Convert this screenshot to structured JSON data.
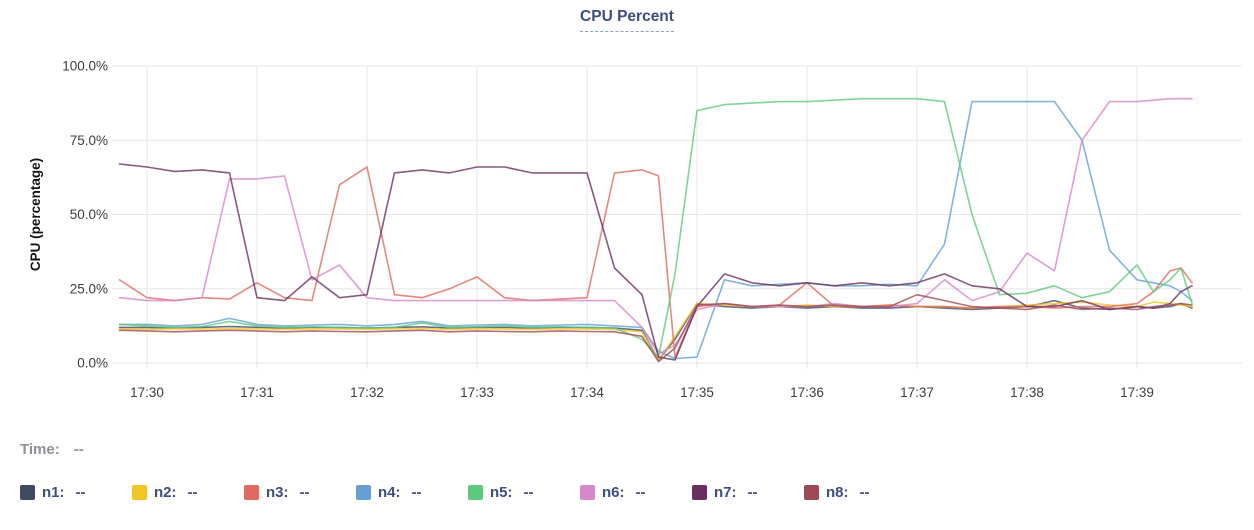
{
  "title": "CPU Percent",
  "time_row": {
    "label": "Time:",
    "value": "--"
  },
  "chart_data": {
    "type": "line",
    "title": "CPU Percent",
    "xlabel": "",
    "ylabel": "CPU (percentage)",
    "grid": true,
    "legend_position": "bottom",
    "ylim": [
      0,
      100
    ],
    "xlim_minutes": [
      29.7,
      39.55
    ],
    "y_ticks": [
      {
        "value": 100,
        "label": "100.0%"
      },
      {
        "value": 75,
        "label": "75.0%"
      },
      {
        "value": 50,
        "label": "50.0%"
      },
      {
        "value": 25,
        "label": "25.0%"
      },
      {
        "value": 0,
        "label": "0.0%"
      }
    ],
    "x_ticks": [
      {
        "minute": 30,
        "label": "17:30"
      },
      {
        "minute": 31,
        "label": "17:31"
      },
      {
        "minute": 32,
        "label": "17:32"
      },
      {
        "minute": 33,
        "label": "17:33"
      },
      {
        "minute": 34,
        "label": "17:34"
      },
      {
        "minute": 35,
        "label": "17:35"
      },
      {
        "minute": 36,
        "label": "17:36"
      },
      {
        "minute": 37,
        "label": "17:37"
      },
      {
        "minute": 38,
        "label": "17:38"
      },
      {
        "minute": 39,
        "label": "17:39"
      }
    ],
    "x_minutes": [
      29.75,
      30,
      30.25,
      30.5,
      30.75,
      31,
      31.25,
      31.5,
      31.75,
      32,
      32.25,
      32.5,
      32.75,
      33,
      33.25,
      33.5,
      33.75,
      34,
      34.25,
      34.5,
      34.65,
      34.8,
      35,
      35.25,
      35.5,
      35.75,
      36,
      36.25,
      36.5,
      36.75,
      37,
      37.25,
      37.5,
      37.75,
      38,
      38.25,
      38.5,
      38.75,
      39,
      39.15,
      39.3,
      39.4,
      39.5
    ],
    "series": [
      {
        "name": "n1",
        "label": "n1:",
        "value": "--",
        "color": "#3e4a61",
        "values": [
          12,
          12,
          11.8,
          12,
          12.3,
          12,
          11.8,
          12,
          12,
          11.8,
          12,
          12.2,
          11.8,
          12,
          12,
          11.8,
          12,
          12,
          11.8,
          11,
          1,
          8,
          20,
          19,
          18.5,
          19,
          18.5,
          19,
          18.5,
          18.5,
          19,
          18.5,
          18,
          18.5,
          19,
          21,
          18.5,
          18,
          19,
          18.5,
          19,
          20,
          18.5
        ]
      },
      {
        "name": "n2",
        "label": "n2:",
        "value": "--",
        "color": "#f2c526",
        "values": [
          11.5,
          11.3,
          11.5,
          11.4,
          11.6,
          11.5,
          11.3,
          11.5,
          11.4,
          11.3,
          11.5,
          11.6,
          11.3,
          11.5,
          11.4,
          11.3,
          11.5,
          11.4,
          11.3,
          10.5,
          1,
          9,
          20,
          19.5,
          19,
          19,
          19.5,
          19,
          19,
          19.5,
          19,
          19,
          18.5,
          19,
          19.5,
          20,
          20.5,
          19.5,
          19,
          20.5,
          20,
          19.5,
          19
        ]
      },
      {
        "name": "n3",
        "label": "n3:",
        "value": "--",
        "color": "#e06a5e",
        "values": [
          28,
          22,
          21,
          22,
          21.5,
          27,
          22,
          21,
          60,
          66,
          23,
          22,
          25,
          29,
          22,
          21,
          21.5,
          22,
          64,
          65,
          63,
          2,
          19,
          20,
          19,
          19.5,
          27,
          19,
          19,
          19.5,
          19,
          19,
          18.5,
          19,
          19,
          18.5,
          19,
          19,
          20,
          24,
          31,
          32,
          27
        ]
      },
      {
        "name": "n4",
        "label": "n4:",
        "value": "--",
        "color": "#64a0d4",
        "values": [
          13,
          13,
          12.5,
          13,
          15,
          13,
          12.5,
          12.8,
          13,
          12.5,
          13,
          14,
          12.5,
          12.8,
          13,
          12.5,
          12.8,
          13,
          12.5,
          12,
          4,
          1.5,
          2,
          28,
          26,
          26.5,
          27,
          26,
          26,
          26.5,
          26,
          40,
          88,
          88,
          88,
          88,
          75,
          38,
          28,
          27,
          26,
          24,
          21
        ]
      },
      {
        "name": "n5",
        "label": "n5:",
        "value": "--",
        "color": "#5ec97c",
        "values": [
          13,
          12.5,
          12,
          12.3,
          14,
          12.5,
          12,
          12.2,
          12,
          11.8,
          12,
          13.5,
          12,
          12.2,
          12.5,
          12,
          12.2,
          12,
          11.8,
          8,
          2,
          30,
          85,
          87,
          87.5,
          88,
          88,
          88.5,
          89,
          89,
          89,
          88,
          50,
          23,
          23.5,
          26,
          22,
          24,
          33,
          24,
          28,
          32,
          20
        ]
      },
      {
        "name": "n6",
        "label": "n6:",
        "value": "--",
        "color": "#d687ca",
        "values": [
          22,
          21,
          21,
          22,
          62,
          62,
          63,
          28,
          33,
          22,
          21,
          21,
          21,
          21,
          21,
          21,
          21,
          21,
          21,
          12,
          3,
          6,
          18,
          20,
          19,
          19,
          19,
          20,
          19,
          19,
          20,
          28,
          21,
          24,
          37,
          31,
          75,
          88,
          88,
          88.5,
          89,
          89,
          89
        ]
      },
      {
        "name": "n7",
        "label": "n7:",
        "value": "--",
        "color": "#6b2f62",
        "values": [
          67,
          66,
          64.5,
          65,
          64,
          22,
          21,
          29,
          22,
          23,
          64,
          65,
          64,
          66,
          66,
          64,
          64,
          64,
          32,
          23,
          2,
          1,
          19,
          30,
          27,
          26,
          27,
          26,
          27,
          26,
          27,
          30,
          26,
          25,
          19,
          19,
          21,
          18,
          19,
          18.5,
          20,
          24,
          26
        ]
      },
      {
        "name": "n8",
        "label": "n8:",
        "value": "--",
        "color": "#9e4a56",
        "values": [
          11,
          10.8,
          10.5,
          10.8,
          11,
          10.8,
          10.5,
          10.8,
          10.6,
          10.5,
          10.8,
          11,
          10.5,
          10.8,
          10.6,
          10.5,
          10.8,
          10.6,
          10.5,
          9,
          0.5,
          5,
          19.5,
          20,
          19,
          19.5,
          19,
          19.5,
          19,
          19,
          23,
          21,
          19,
          18.5,
          18,
          19.5,
          18,
          18.5,
          18,
          19,
          19.5,
          20,
          19.5
        ]
      }
    ]
  }
}
